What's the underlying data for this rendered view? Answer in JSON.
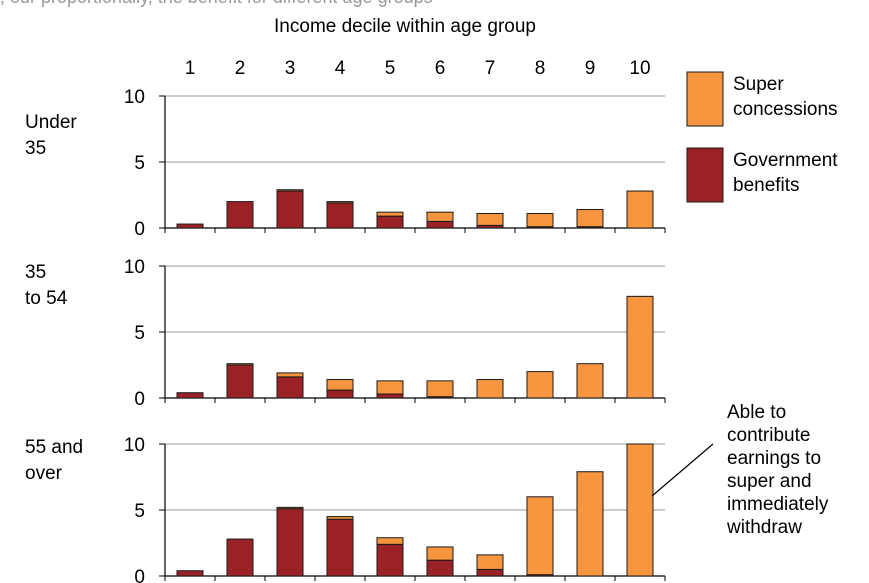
{
  "header_fragment": ", our proportionally, the benefit for different age groups",
  "colors": {
    "super": "#f7963f",
    "benefits": "#9a2126",
    "outline": "#1a1a1a",
    "grid": "#999999"
  },
  "chart_data": {
    "type": "bar",
    "stacked": true,
    "xlabel": "Income decile within age group",
    "categories": [
      "1",
      "2",
      "3",
      "4",
      "5",
      "6",
      "7",
      "8",
      "9",
      "10"
    ],
    "ylim": [
      0,
      10
    ],
    "yticks": [
      "0",
      "5",
      "10"
    ],
    "grid": true,
    "legend": {
      "placement": "right",
      "items": [
        {
          "lines": [
            "Super",
            "concessions"
          ],
          "color": "#f7963f"
        },
        {
          "lines": [
            "Government",
            "benefits"
          ],
          "color": "#9a2126"
        }
      ]
    },
    "panels": [
      {
        "label_lines": [
          "Under",
          "35"
        ],
        "series": [
          {
            "name": "Government benefits",
            "values": [
              0.3,
              2.0,
              2.8,
              1.9,
              0.9,
              0.5,
              0.2,
              0.1,
              0.1,
              0.0
            ]
          },
          {
            "name": "Super concessions",
            "values": [
              0.0,
              0.0,
              0.1,
              0.1,
              0.3,
              0.7,
              0.9,
              1.0,
              1.3,
              2.8
            ]
          }
        ]
      },
      {
        "label_lines": [
          "35",
          "to 54"
        ],
        "series": [
          {
            "name": "Government benefits",
            "values": [
              0.4,
              2.5,
              1.6,
              0.6,
              0.3,
              0.1,
              0.0,
              0.0,
              0.0,
              0.0
            ]
          },
          {
            "name": "Super concessions",
            "values": [
              0.0,
              0.1,
              0.3,
              0.8,
              1.0,
              1.2,
              1.4,
              2.0,
              2.6,
              7.7
            ]
          }
        ]
      },
      {
        "label_lines": [
          "55 and",
          "over"
        ],
        "series": [
          {
            "name": "Government benefits",
            "values": [
              0.4,
              2.8,
              5.1,
              4.3,
              2.4,
              1.2,
              0.5,
              0.1,
              0.0,
              0.0
            ]
          },
          {
            "name": "Super concessions",
            "values": [
              0.0,
              0.0,
              0.1,
              0.2,
              0.5,
              1.0,
              1.1,
              5.9,
              7.9,
              10.0
            ]
          }
        ]
      }
    ],
    "annotation": {
      "lines": [
        "Able to",
        "contribute",
        "earnings to",
        "super and",
        "immediately",
        "withdraw"
      ],
      "panel": 2,
      "category": "10"
    }
  }
}
